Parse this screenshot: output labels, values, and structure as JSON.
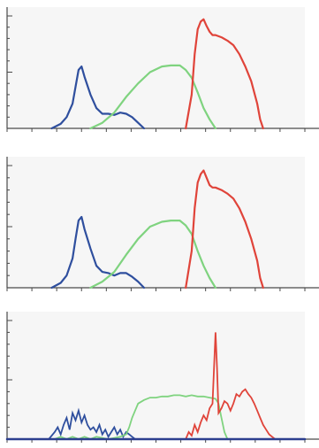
{
  "colors": {
    "background": "#f6f6f6",
    "axis": "#4a4a4a",
    "blue": "#2f4f9e",
    "green": "#7fd37f",
    "red": "#e0443a",
    "baseline_blue": "#2c3f8f"
  },
  "chart_data": [
    {
      "type": "line",
      "title": "",
      "xlabel": "",
      "ylabel": "",
      "xlim": [
        0,
        100
      ],
      "ylim": [
        0,
        100
      ],
      "grid": false,
      "series": [
        {
          "color": "blue",
          "x": [
            15,
            18,
            20,
            22,
            23,
            24,
            25,
            26,
            28,
            30,
            32,
            34,
            36,
            38,
            40,
            42,
            44,
            46
          ],
          "y": [
            0,
            4,
            10,
            22,
            37,
            52,
            55,
            46,
            30,
            18,
            13,
            13,
            12,
            14,
            13,
            10,
            5,
            0
          ]
        },
        {
          "color": "green",
          "x": [
            28,
            32,
            36,
            40,
            44,
            48,
            52,
            55,
            58,
            60,
            62,
            64,
            66,
            68,
            70
          ],
          "y": [
            0,
            5,
            14,
            28,
            40,
            50,
            55,
            56,
            56,
            52,
            45,
            32,
            18,
            8,
            0
          ]
        },
        {
          "color": "red",
          "x": [
            60,
            62,
            63,
            64,
            65,
            66,
            67,
            68,
            69,
            70,
            72,
            74,
            76,
            78,
            80,
            82,
            84,
            85,
            86
          ],
          "y": [
            0,
            30,
            66,
            88,
            95,
            97,
            91,
            86,
            83,
            83,
            81,
            78,
            74,
            66,
            55,
            42,
            22,
            8,
            0
          ]
        }
      ]
    },
    {
      "type": "line",
      "title": "",
      "xlabel": "",
      "ylabel": "",
      "xlim": [
        0,
        100
      ],
      "ylim": [
        0,
        100
      ],
      "grid": false,
      "series": [
        {
          "color": "blue",
          "x": [
            15,
            18,
            20,
            22,
            23,
            24,
            25,
            26,
            28,
            30,
            32,
            34,
            36,
            38,
            40,
            42,
            44,
            46
          ],
          "y": [
            0,
            4,
            10,
            24,
            40,
            55,
            58,
            48,
            32,
            18,
            13,
            12,
            10,
            12,
            12,
            9,
            5,
            0
          ]
        },
        {
          "color": "green",
          "x": [
            28,
            32,
            36,
            40,
            44,
            48,
            52,
            55,
            58,
            60,
            62,
            64,
            66,
            68,
            70
          ],
          "y": [
            0,
            5,
            13,
            27,
            40,
            50,
            54,
            55,
            55,
            51,
            44,
            30,
            18,
            8,
            0
          ]
        },
        {
          "color": "red",
          "x": [
            60,
            62,
            63,
            64,
            65,
            66,
            67,
            68,
            69,
            70,
            72,
            74,
            76,
            78,
            80,
            82,
            84,
            85,
            86
          ],
          "y": [
            0,
            30,
            65,
            86,
            93,
            96,
            90,
            84,
            82,
            82,
            80,
            77,
            73,
            65,
            54,
            40,
            22,
            8,
            0
          ]
        }
      ]
    },
    {
      "type": "line",
      "title": "",
      "xlabel": "",
      "ylabel": "",
      "xlim": [
        0,
        100
      ],
      "ylim": [
        0,
        100
      ],
      "grid": false,
      "series": [
        {
          "color": "blue",
          "x": [
            14,
            16,
            17,
            18,
            19,
            20,
            21,
            22,
            23,
            24,
            25,
            26,
            27,
            28,
            29,
            30,
            31,
            32,
            33,
            34,
            35,
            36,
            37,
            38,
            39,
            40,
            41,
            42,
            43,
            44
          ],
          "y": [
            0,
            6,
            10,
            4,
            12,
            18,
            8,
            22,
            16,
            24,
            14,
            20,
            12,
            8,
            10,
            6,
            12,
            4,
            8,
            2,
            6,
            10,
            4,
            8,
            2,
            6,
            4,
            2,
            0,
            0
          ]
        },
        {
          "color": "green",
          "x": [
            16,
            18,
            20,
            22,
            24,
            26,
            28,
            30,
            34,
            38,
            40,
            41,
            42,
            43,
            44,
            46,
            48,
            50,
            52,
            54,
            56,
            58,
            60,
            62,
            64,
            66,
            68,
            70,
            71,
            72,
            73,
            74
          ],
          "y": [
            0,
            2,
            0,
            2,
            0,
            2,
            0,
            2,
            0,
            2,
            4,
            10,
            18,
            24,
            30,
            33,
            35,
            35,
            36,
            36,
            37,
            37,
            36,
            37,
            36,
            36,
            35,
            34,
            30,
            18,
            6,
            0
          ]
        },
        {
          "color": "red",
          "x": [
            60,
            61,
            62,
            63,
            64,
            65,
            66,
            67,
            68,
            69,
            69.5,
            70,
            70.5,
            71,
            72,
            73,
            74,
            75,
            76,
            77,
            78,
            79,
            80,
            81,
            82,
            83,
            84,
            85,
            86,
            87,
            88,
            89,
            90
          ],
          "y": [
            0,
            6,
            3,
            12,
            6,
            14,
            20,
            16,
            26,
            30,
            60,
            90,
            60,
            22,
            26,
            32,
            30,
            24,
            30,
            38,
            36,
            40,
            42,
            38,
            35,
            30,
            24,
            18,
            12,
            8,
            4,
            2,
            0
          ]
        },
        {
          "color": "baseline_blue",
          "x": [
            0,
            100
          ],
          "y": [
            0,
            0
          ]
        }
      ]
    }
  ]
}
